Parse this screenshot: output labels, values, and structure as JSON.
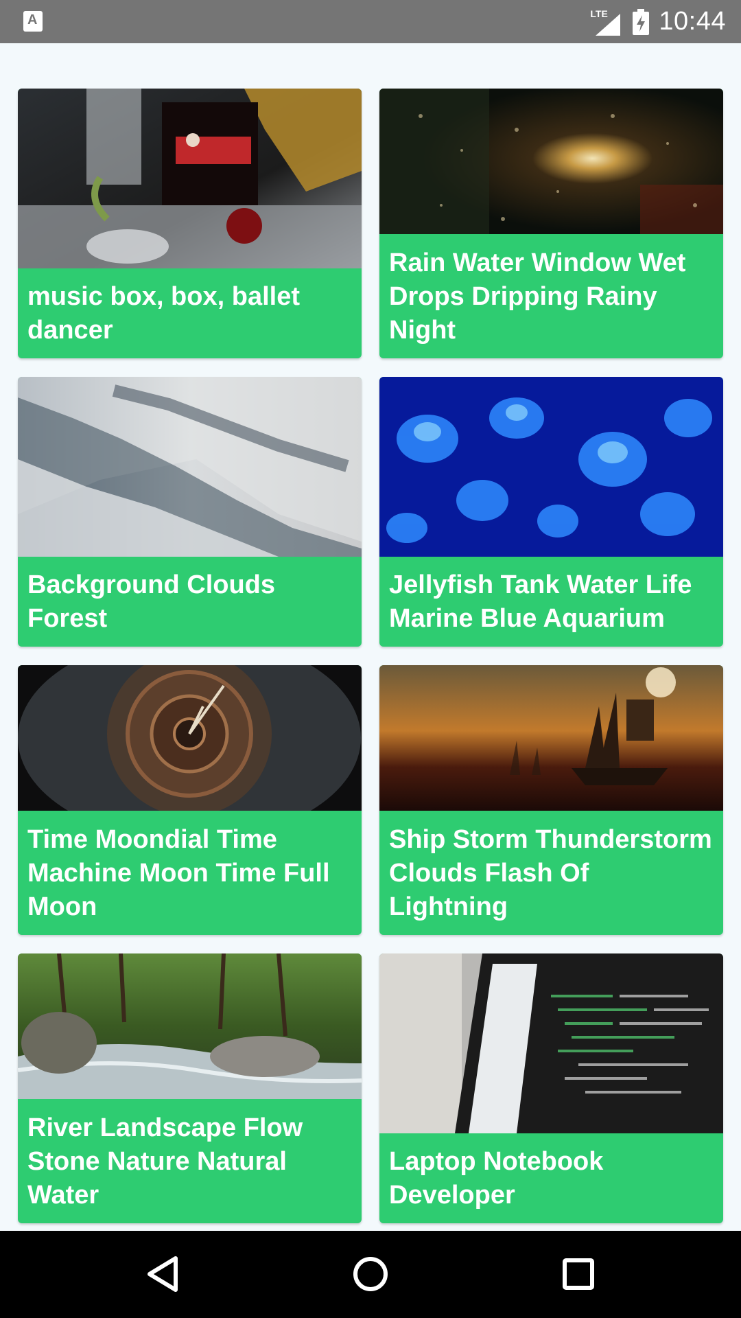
{
  "status_bar": {
    "network": "LTE",
    "time": "10:44"
  },
  "cards": [
    {
      "title": "music box, box, ballet dancer",
      "image": "music-box-image"
    },
    {
      "title": "Rain Water Window Wet Drops Dripping Rainy Night",
      "image": "rain-window-image"
    },
    {
      "title": "Background Clouds Forest",
      "image": "clouds-forest-image"
    },
    {
      "title": "Jellyfish Tank Water Life Marine Blue Aquarium",
      "image": "jellyfish-image"
    },
    {
      "title": "Time Moondial Time Machine Moon Time Full Moon",
      "image": "moondial-image"
    },
    {
      "title": "Ship Storm Thunderstorm Clouds Flash Of Lightning",
      "image": "ship-storm-image"
    },
    {
      "title": "River Landscape Flow Stone Nature Natural Water",
      "image": "river-image"
    },
    {
      "title": "Laptop Notebook Developer",
      "image": "laptop-image"
    }
  ],
  "colors": {
    "card_green": "#2ecc71",
    "status_bar": "#757575",
    "background": "#f3f9fc",
    "nav_bar": "#000000"
  },
  "nav": {
    "back_icon": "back-triangle-icon",
    "home_icon": "home-circle-icon",
    "recents_icon": "recents-square-icon"
  }
}
